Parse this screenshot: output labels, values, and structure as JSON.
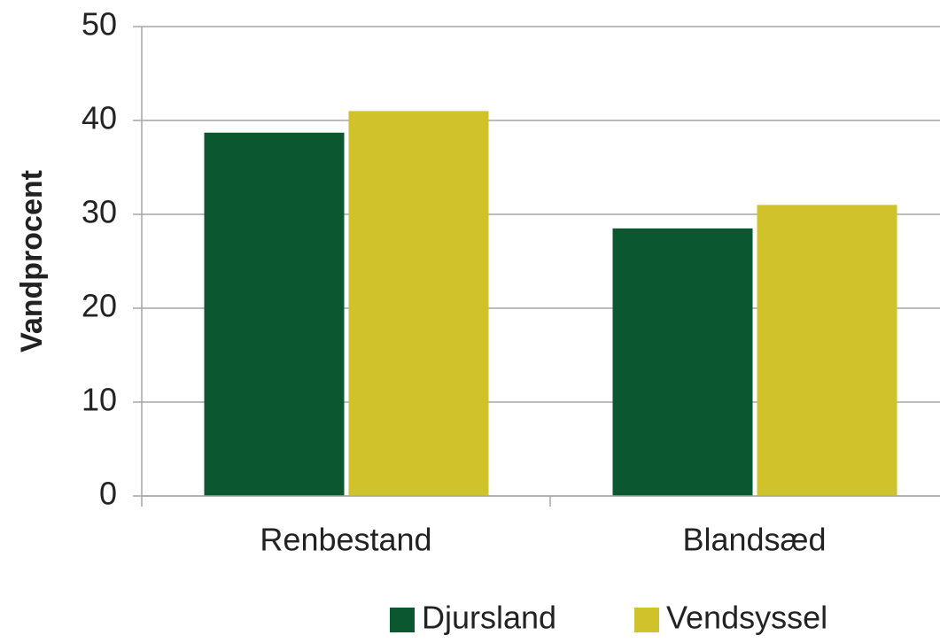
{
  "chart_data": {
    "type": "bar",
    "y_label": "Vandprocent",
    "categories": [
      "Renbestand",
      "Blandsæd"
    ],
    "series": [
      {
        "name": "Djursland",
        "color": "#0b572f",
        "values": [
          38.7,
          28.5
        ]
      },
      {
        "name": "Vendsyssel",
        "color": "#d0c22b",
        "values": [
          41.0,
          31.0
        ]
      }
    ],
    "ylim": [
      0,
      50
    ],
    "yticks": [
      0,
      10,
      20,
      30,
      40,
      50
    ],
    "grid": true,
    "legend": "bottom"
  }
}
